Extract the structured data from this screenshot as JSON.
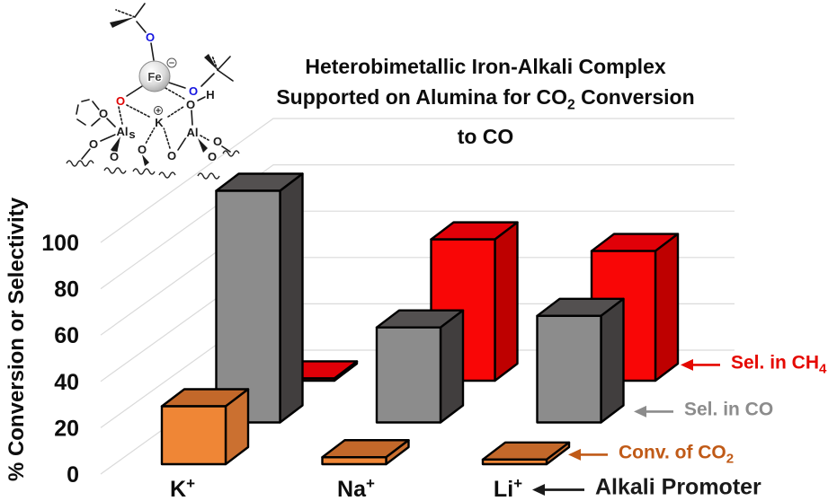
{
  "title": {
    "line1": "Heterobimetallic Iron-Alkali Complex",
    "line2_pre": "Supported on Alumina for CO",
    "line2_sub": "2",
    "line2_post": " Conversion",
    "line3": "to CO"
  },
  "y_axis": {
    "label": "% Conversion or Selectivity",
    "ticks": [
      100,
      80,
      60,
      40,
      20,
      0
    ]
  },
  "x_axis": {
    "label": "Alkali Promoter",
    "categories": [
      {
        "base": "K",
        "sup": "+"
      },
      {
        "base": "Na",
        "sup": "+"
      },
      {
        "base": "Li",
        "sup": "+"
      }
    ]
  },
  "chart_data": {
    "type": "bar",
    "projection": "3d-oblique",
    "title": "Heterobimetallic Iron-Alkali Complex Supported on Alumina for CO2 Conversion to CO",
    "xlabel": "Alkali Promoter",
    "ylabel": "% Conversion or Selectivity",
    "ylim": [
      0,
      100
    ],
    "grid": true,
    "categories": [
      "K+",
      "Na+",
      "Li+"
    ],
    "series": [
      {
        "name": "Conv. of CO2",
        "depth_row": "front",
        "values": [
          25,
          3,
          2
        ],
        "colors": {
          "front": "#EF8636",
          "top": "#C3682A",
          "side": "#CB7030"
        }
      },
      {
        "name": "Sel. in CO",
        "depth_row": "middle",
        "values": [
          100,
          41,
          46
        ],
        "colors": {
          "front": "#8C8C8C",
          "top": "#535050",
          "side": "#413E3E"
        }
      },
      {
        "name": "Sel. in CH4",
        "depth_row": "back",
        "values": [
          1,
          61,
          56
        ],
        "colors": {
          "front": "#F90606",
          "top": "#E10008",
          "side": "#BE0000"
        }
      }
    ]
  },
  "annotations": [
    {
      "label_pre": "Sel. in CH",
      "label_sub": "4",
      "color": "#E50800"
    },
    {
      "label_pre": "Sel. in CO",
      "label_sub": "",
      "color": "#8C8C8C"
    },
    {
      "label_pre": "Conv. of CO",
      "label_sub": "2",
      "color": "#C05A17"
    },
    {
      "label_pre": "Alkali Promoter",
      "label_sub": "",
      "color": "#1A1A1A"
    }
  ],
  "molecule": {
    "description": "Heterobimetallic Fe-K alkoxide complex bound to an alumina surface",
    "atoms": {
      "fe": "Fe",
      "k": "K",
      "o": "O",
      "h": "H",
      "al": "Al",
      "al_surface": "Al",
      "al_surface_sub": "s",
      "charge_minus": "−",
      "charge_plus": "+"
    }
  }
}
